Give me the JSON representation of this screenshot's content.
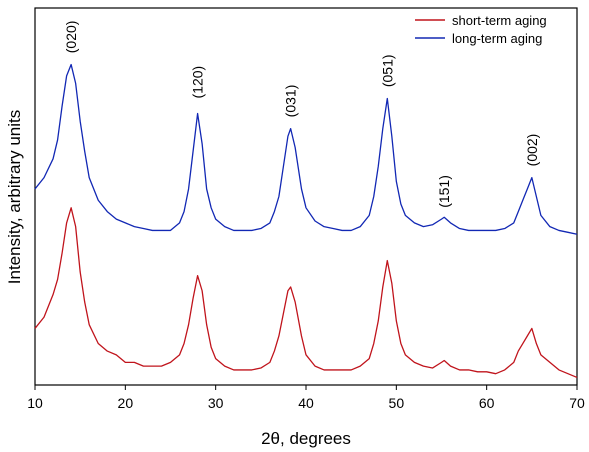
{
  "chart_data": {
    "type": "line",
    "xlabel": "2θ, degrees",
    "ylabel": "Intensity, arbitrary units",
    "xlim": [
      10,
      70
    ],
    "xticks": [
      10,
      20,
      30,
      40,
      50,
      60,
      70
    ],
    "ylim": [
      0,
      100
    ],
    "legend": "upper right",
    "x": [
      10,
      11,
      12,
      12.5,
      13,
      13.5,
      14,
      14.5,
      15,
      15.5,
      16,
      17,
      18,
      19,
      20,
      21,
      22,
      23,
      24,
      25,
      26,
      26.5,
      27,
      27.5,
      28,
      28.5,
      29,
      29.5,
      30,
      31,
      32,
      33,
      34,
      35,
      36,
      36.5,
      37,
      37.5,
      38,
      38.3,
      38.8,
      39.5,
      40,
      41,
      42,
      43,
      44,
      45,
      46,
      47,
      47.5,
      48,
      48.5,
      49,
      49.5,
      50,
      50.5,
      51,
      52,
      53,
      54,
      55,
      55.3,
      56,
      57,
      58,
      59,
      60,
      61,
      62,
      63,
      63.5,
      64,
      64.5,
      65,
      65.5,
      66,
      67,
      68,
      69,
      70
    ],
    "series": [
      {
        "name": "short-term aging",
        "color": "#c0141c",
        "values": [
          15,
          18,
          24,
          28,
          35,
          43,
          47,
          42,
          30,
          22,
          16,
          11,
          9,
          8,
          6,
          6,
          5,
          5,
          5,
          6,
          8,
          11,
          16,
          23,
          29,
          25,
          16,
          10,
          7,
          5,
          4,
          4,
          4,
          4.5,
          6,
          9,
          13,
          19,
          25,
          26,
          22,
          13,
          8,
          5,
          4,
          4,
          4,
          4,
          5,
          7,
          11,
          17,
          26,
          33,
          27,
          17,
          11,
          8,
          6,
          5,
          4.5,
          6,
          6.5,
          5,
          4,
          4,
          3.5,
          3.5,
          3,
          4,
          6,
          9,
          11,
          13,
          15,
          11,
          8,
          6,
          4,
          3,
          2
        ]
      },
      {
        "name": "long-term aging",
        "color": "#1228b4",
        "values": [
          52,
          55,
          60,
          65,
          74,
          82,
          85,
          80,
          70,
          62,
          55,
          49,
          46,
          44,
          43,
          42,
          41.5,
          41,
          41,
          41,
          43,
          46,
          52,
          62,
          72,
          64,
          52,
          47,
          44,
          42,
          41,
          41,
          41,
          41.5,
          43,
          46,
          50,
          58,
          66,
          68,
          63,
          52,
          47,
          43.5,
          42,
          41.5,
          41,
          41,
          42,
          45,
          50,
          58,
          68,
          76,
          66,
          54,
          48,
          45,
          43,
          42,
          42.5,
          44,
          44.5,
          43,
          41.5,
          41,
          41,
          41,
          41,
          41.5,
          43,
          46,
          49,
          52,
          55,
          50,
          45,
          42,
          41,
          40.5,
          40
        ]
      }
    ],
    "annotations": [
      {
        "text": "(020)",
        "x": 14,
        "y": 88
      },
      {
        "text": "(120)",
        "x": 28,
        "y": 76
      },
      {
        "text": "(031)",
        "x": 38.3,
        "y": 71
      },
      {
        "text": "(051)",
        "x": 49,
        "y": 79
      },
      {
        "text": "(151)",
        "x": 55.3,
        "y": 47
      },
      {
        "text": "(002)",
        "x": 65,
        "y": 58
      }
    ]
  }
}
